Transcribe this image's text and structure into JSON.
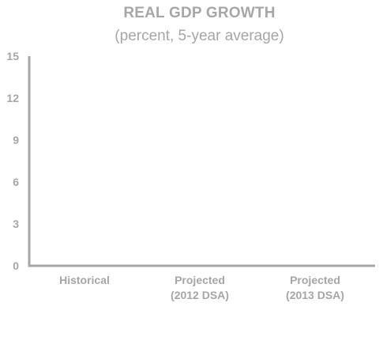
{
  "chart_data": {
    "type": "bar",
    "title": "REAL GDP GROWTH",
    "subtitle": "(percent, 5-year average)",
    "xlabel": "",
    "ylabel": "",
    "ylim": [
      0,
      15
    ],
    "yticks": [
      0,
      3,
      6,
      9,
      12,
      15
    ],
    "categories": [
      [
        "Historical"
      ],
      [
        "Projected",
        "(2012 DSA)"
      ],
      [
        "Projected",
        "(2013 DSA)"
      ]
    ],
    "values": [
      null,
      null,
      null
    ],
    "grid": false,
    "legend": "none",
    "colors": {
      "axis": "#a6a6a6",
      "text": "#a6a6a6"
    }
  }
}
